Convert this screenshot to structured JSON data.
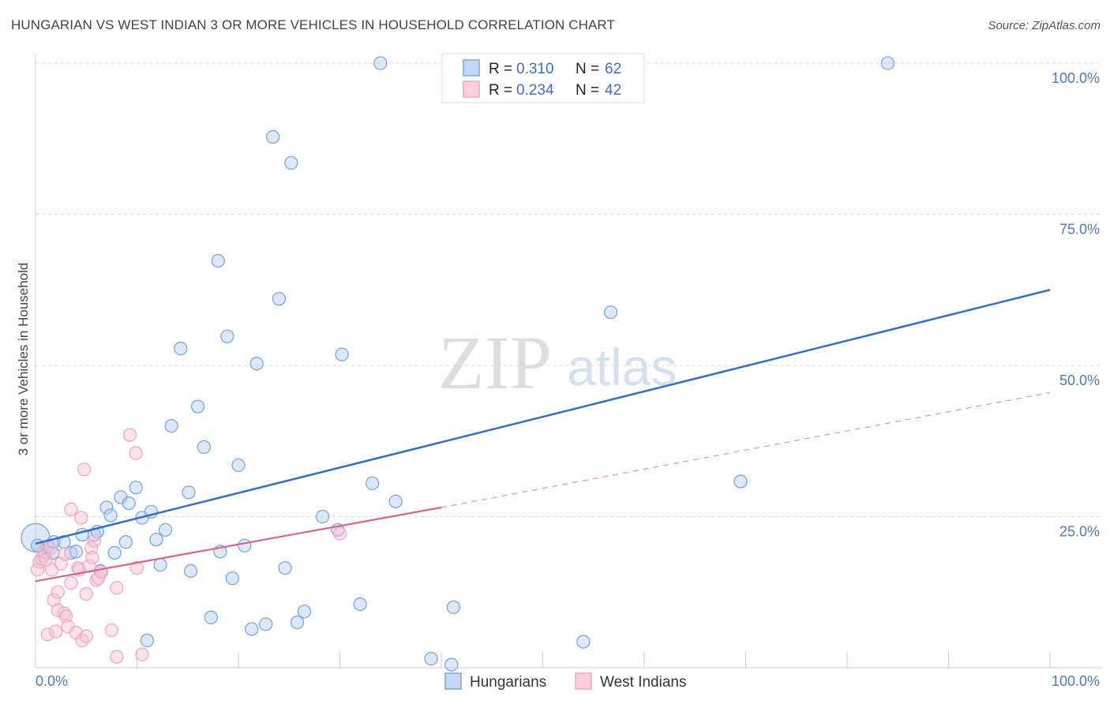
{
  "title": "HUNGARIAN VS WEST INDIAN 3 OR MORE VEHICLES IN HOUSEHOLD CORRELATION CHART",
  "source": "Source: ZipAtlas.com",
  "watermark": {
    "zip": "ZIP",
    "atlas": "atlas"
  },
  "chart_data": {
    "type": "scatter",
    "title": "HUNGARIAN VS WEST INDIAN 3 OR MORE VEHICLES IN HOUSEHOLD CORRELATION CHART",
    "xlabel": "",
    "ylabel": "3 or more Vehicles in Household",
    "xlim": [
      0,
      100
    ],
    "ylim": [
      0,
      100
    ],
    "x_tick_labels": {
      "left": "0.0%",
      "right": "100.0%"
    },
    "y_ticks": [
      {
        "value": 25,
        "label": "25.0%"
      },
      {
        "value": 50,
        "label": "50.0%"
      },
      {
        "value": 75,
        "label": "75.0%"
      },
      {
        "value": 100,
        "label": "100.0%"
      }
    ],
    "grid": true,
    "legend": {
      "placement": "top-center",
      "rows": [
        {
          "r_label": "R =",
          "r_value": "0.310",
          "n_label": "N =",
          "n_value": "62"
        },
        {
          "r_label": "R =",
          "r_value": "0.234",
          "n_label": "N =",
          "n_value": "42"
        }
      ]
    },
    "series": [
      {
        "name": "Hungarians",
        "color": "#7aa7e0",
        "line_color": "#2f6fce",
        "trend": {
          "x0": 0,
          "y0": 20.5,
          "x1": 100,
          "y1": 62.5,
          "dashed_from": null
        },
        "points": [
          [
            0.0,
            21.5
          ],
          [
            0.8,
            18.5
          ],
          [
            1.2,
            20.0
          ],
          [
            1.7,
            19.0
          ],
          [
            1.8,
            20.8
          ],
          [
            2.8,
            20.8
          ],
          [
            3.5,
            19.0
          ],
          [
            4.0,
            19.2
          ],
          [
            4.6,
            22.0
          ],
          [
            5.8,
            22.0
          ],
          [
            6.1,
            22.5
          ],
          [
            6.4,
            16.0
          ],
          [
            7.0,
            26.5
          ],
          [
            7.4,
            25.2
          ],
          [
            7.8,
            19.0
          ],
          [
            8.4,
            28.2
          ],
          [
            8.9,
            20.8
          ],
          [
            9.2,
            27.2
          ],
          [
            9.9,
            29.8
          ],
          [
            10.5,
            24.8
          ],
          [
            11.0,
            4.5
          ],
          [
            11.4,
            25.8
          ],
          [
            11.9,
            21.2
          ],
          [
            12.3,
            17.0
          ],
          [
            12.8,
            22.8
          ],
          [
            13.4,
            40.0
          ],
          [
            14.3,
            52.8
          ],
          [
            15.1,
            29.0
          ],
          [
            15.3,
            16.0
          ],
          [
            16.0,
            43.2
          ],
          [
            16.6,
            36.5
          ],
          [
            17.3,
            8.3
          ],
          [
            18.0,
            67.3
          ],
          [
            18.2,
            19.2
          ],
          [
            18.9,
            54.8
          ],
          [
            19.4,
            14.8
          ],
          [
            20.0,
            33.5
          ],
          [
            20.6,
            20.2
          ],
          [
            21.3,
            6.4
          ],
          [
            21.8,
            50.3
          ],
          [
            22.7,
            7.2
          ],
          [
            23.4,
            87.8
          ],
          [
            24.0,
            61.0
          ],
          [
            24.6,
            16.5
          ],
          [
            25.2,
            83.5
          ],
          [
            25.8,
            7.5
          ],
          [
            26.5,
            9.3
          ],
          [
            28.3,
            25.0
          ],
          [
            29.8,
            22.8
          ],
          [
            30.2,
            51.8
          ],
          [
            32.0,
            10.5
          ],
          [
            33.2,
            30.5
          ],
          [
            34.0,
            100.0
          ],
          [
            35.5,
            27.5
          ],
          [
            39.0,
            1.5
          ],
          [
            41.0,
            0.5
          ],
          [
            41.2,
            10.0
          ],
          [
            54.0,
            4.3
          ],
          [
            56.7,
            58.8
          ],
          [
            69.5,
            30.8
          ],
          [
            84.0,
            100.0
          ],
          [
            0.2,
            20.2
          ]
        ],
        "sizes": {
          "default": 8,
          "large_index": 0,
          "large": 18
        }
      },
      {
        "name": "West Indians",
        "color": "#f4a7bf",
        "line_color": "#e0628a",
        "trend": {
          "x0": 0,
          "y0": 14.3,
          "x1": 40,
          "y1": 26.5,
          "dashed_to_x": 100,
          "dashed_to_y": 45.5
        },
        "points": [
          [
            0.2,
            16.2
          ],
          [
            0.4,
            17.5
          ],
          [
            0.6,
            18.0
          ],
          [
            0.8,
            19.2
          ],
          [
            1.0,
            17.8
          ],
          [
            1.2,
            5.5
          ],
          [
            1.5,
            19.8
          ],
          [
            1.6,
            16.2
          ],
          [
            1.8,
            11.2
          ],
          [
            2.0,
            6.0
          ],
          [
            2.2,
            9.5
          ],
          [
            2.2,
            12.5
          ],
          [
            2.5,
            17.2
          ],
          [
            2.8,
            9.0
          ],
          [
            2.9,
            18.8
          ],
          [
            3.0,
            8.5
          ],
          [
            3.2,
            6.8
          ],
          [
            3.5,
            26.2
          ],
          [
            3.5,
            14.0
          ],
          [
            4.0,
            5.8
          ],
          [
            4.2,
            16.5
          ],
          [
            4.3,
            16.2
          ],
          [
            4.5,
            24.8
          ],
          [
            4.8,
            32.8
          ],
          [
            4.6,
            4.5
          ],
          [
            5.0,
            5.2
          ],
          [
            5.0,
            12.2
          ],
          [
            5.3,
            16.8
          ],
          [
            5.5,
            19.8
          ],
          [
            5.6,
            18.2
          ],
          [
            5.8,
            21.0
          ],
          [
            6.0,
            14.5
          ],
          [
            6.2,
            14.8
          ],
          [
            6.5,
            15.8
          ],
          [
            7.5,
            6.2
          ],
          [
            8.0,
            13.2
          ],
          [
            8.0,
            1.8
          ],
          [
            9.3,
            38.5
          ],
          [
            9.9,
            35.5
          ],
          [
            10.0,
            16.5
          ],
          [
            10.5,
            2.2
          ],
          [
            30.0,
            22.2
          ]
        ],
        "sizes": {
          "default": 8
        }
      }
    ]
  }
}
